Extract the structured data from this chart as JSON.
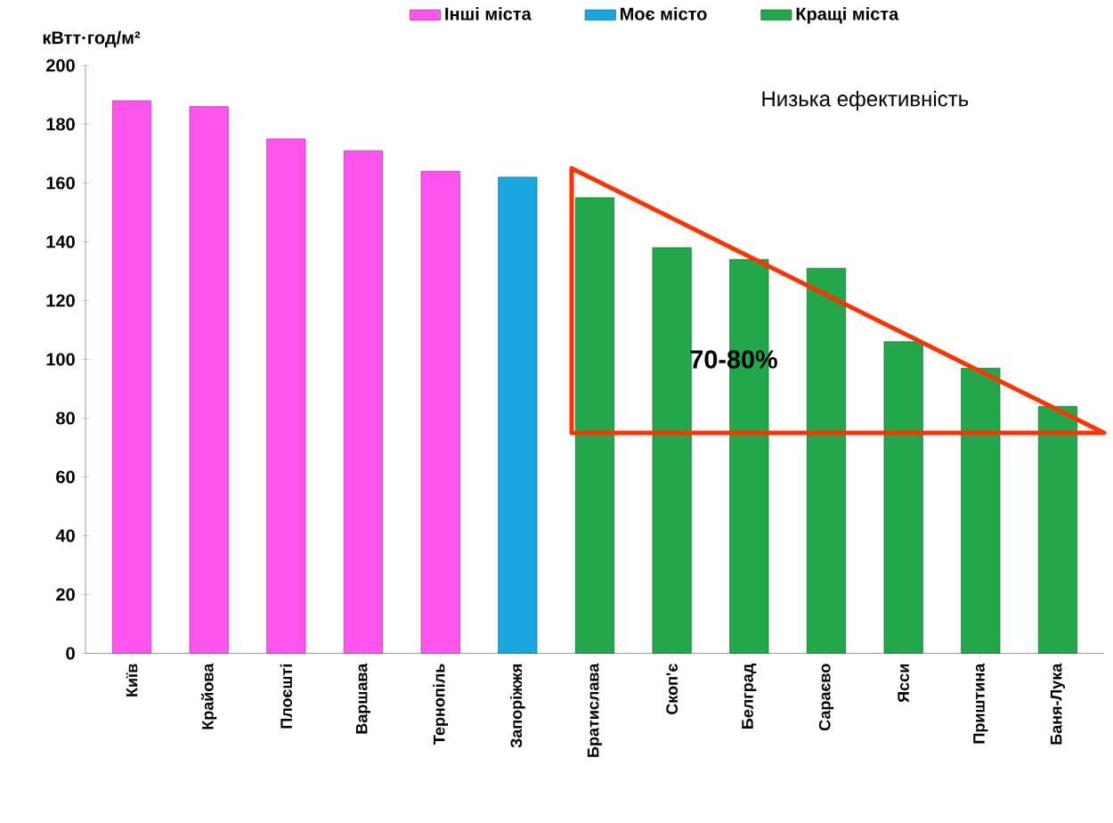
{
  "chart_data": {
    "type": "bar",
    "ylabel": "кВтт·год/м²",
    "categories": [
      "Київ",
      "Крайова",
      "Плоєшті",
      "Варшава",
      "Тернопіль",
      "Запоріжжя",
      "Братислава",
      "Скоп'є",
      "Белград",
      "Сараєво",
      "Ясси",
      "Приштина",
      "Баня-Лука"
    ],
    "series": [
      {
        "name": "Інші міста",
        "color": "#ff55ee",
        "values": [
          188,
          186,
          175,
          171,
          164,
          null,
          null,
          null,
          null,
          null,
          null,
          null,
          null
        ]
      },
      {
        "name": "Моє місто",
        "color": "#1aa7e0",
        "values": [
          null,
          null,
          null,
          null,
          null,
          162,
          null,
          null,
          null,
          null,
          null,
          null,
          null
        ]
      },
      {
        "name": "Кращі міста",
        "color": "#22a84a",
        "values": [
          null,
          null,
          null,
          null,
          null,
          null,
          155,
          138,
          134,
          131,
          106,
          97,
          84
        ]
      }
    ],
    "ylim": [
      0,
      200
    ],
    "yticks": [
      0,
      20,
      40,
      60,
      80,
      100,
      120,
      140,
      160,
      180,
      200
    ],
    "annotations": [
      "Низька ефективність",
      "70-80%"
    ],
    "legend": "top"
  }
}
